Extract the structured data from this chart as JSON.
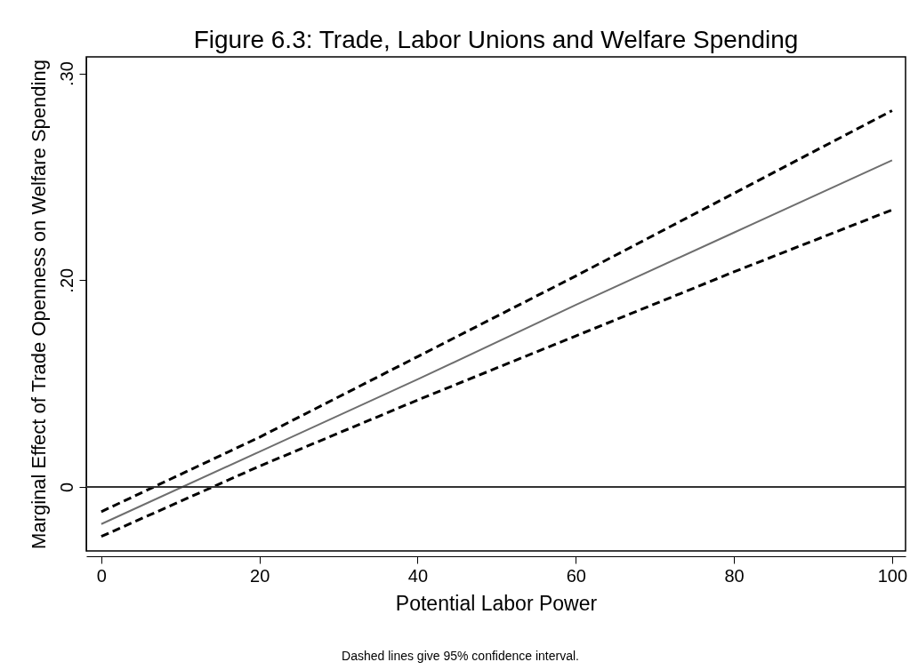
{
  "chart_data": {
    "type": "line",
    "title": "Figure 6.3: Trade, Labor Unions and Welfare Spending",
    "xlabel": "Potential Labor Power",
    "ylabel": "Marginal Effect of Trade Openness on Welfare Spending",
    "annotations": [
      "Dashed lines give 95% confidence interval."
    ],
    "x": [
      0,
      20,
      40,
      60,
      80,
      100
    ],
    "series": [
      {
        "color": "#000000",
        "line_style": "dashed",
        "values": [
          0.088,
          0.124,
          0.163,
          0.202,
          0.242,
          0.282
        ]
      },
      {
        "color": "#6e6e6e",
        "line_style": "solid",
        "values": [
          0.082,
          0.117,
          0.152,
          0.188,
          0.223,
          0.258
        ]
      },
      {
        "color": "#000000",
        "line_style": "dashed",
        "values": [
          0.076,
          0.11,
          0.142,
          0.173,
          0.204,
          0.234
        ]
      }
    ],
    "xlim": [
      -1.9,
      101.7
    ],
    "ylim": [
      0.069,
      0.308
    ],
    "xticks": [
      0,
      20,
      40,
      60,
      80,
      100
    ],
    "yticks": [
      {
        "value": 0.1,
        "label": "0"
      },
      {
        "value": 0.2,
        "label": ".20"
      },
      {
        "value": 0.3,
        "label": ".30"
      }
    ],
    "ref_lines": [
      {
        "axis": "y",
        "value": 0.1,
        "color": "#333333"
      }
    ],
    "grid": false,
    "marker": "none"
  }
}
